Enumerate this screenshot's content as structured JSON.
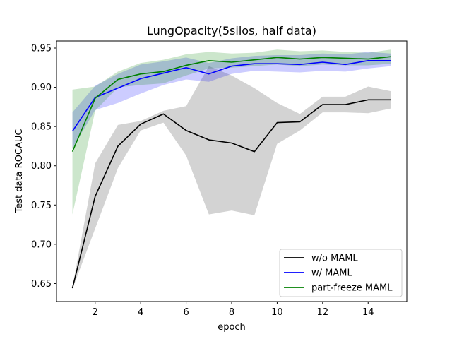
{
  "chart_data": {
    "type": "line",
    "title": "LungOpacity(5silos, half data)",
    "xlabel": "epoch",
    "ylabel": "Test data ROCAUC",
    "xlim": [
      0.3,
      15.7
    ],
    "ylim": [
      0.627,
      0.959
    ],
    "xticks": [
      2,
      4,
      6,
      8,
      10,
      12,
      14
    ],
    "yticks": [
      0.65,
      0.7,
      0.75,
      0.8,
      0.85,
      0.9,
      0.95
    ],
    "ytick_labels": [
      "0.65",
      "0.70",
      "0.75",
      "0.80",
      "0.85",
      "0.90",
      "0.95"
    ],
    "grid": false,
    "legend_position": "lower-right",
    "x": [
      1,
      2,
      3,
      4,
      5,
      6,
      7,
      8,
      9,
      10,
      11,
      12,
      13,
      14,
      15
    ],
    "series": [
      {
        "name": "w/o MAML",
        "color": "#000000",
        "band_color": "#808080",
        "band_opacity": 0.35,
        "values": [
          0.644,
          0.761,
          0.825,
          0.853,
          0.866,
          0.845,
          0.833,
          0.829,
          0.818,
          0.855,
          0.856,
          0.878,
          0.878,
          0.884,
          0.884
        ],
        "lower": [
          0.643,
          0.72,
          0.797,
          0.845,
          0.855,
          0.813,
          0.738,
          0.743,
          0.737,
          0.828,
          0.845,
          0.868,
          0.868,
          0.867,
          0.873
        ],
        "upper": [
          0.645,
          0.803,
          0.852,
          0.857,
          0.87,
          0.876,
          0.927,
          0.915,
          0.899,
          0.88,
          0.866,
          0.888,
          0.888,
          0.901,
          0.895
        ]
      },
      {
        "name": "w/ MAML",
        "color": "#0000ff",
        "band_color": "#0000ff",
        "band_opacity": 0.2,
        "values": [
          0.844,
          0.887,
          0.899,
          0.911,
          0.918,
          0.925,
          0.917,
          0.927,
          0.93,
          0.93,
          0.929,
          0.932,
          0.929,
          0.934,
          0.934
        ],
        "lower": [
          0.822,
          0.871,
          0.88,
          0.892,
          0.903,
          0.91,
          0.907,
          0.917,
          0.921,
          0.92,
          0.919,
          0.921,
          0.92,
          0.924,
          0.927
        ],
        "upper": [
          0.868,
          0.902,
          0.917,
          0.929,
          0.933,
          0.938,
          0.931,
          0.937,
          0.94,
          0.941,
          0.941,
          0.943,
          0.942,
          0.945,
          0.943
        ]
      },
      {
        "name": "part-freeze MAML",
        "color": "#008000",
        "band_color": "#008000",
        "band_opacity": 0.2,
        "values": [
          0.818,
          0.886,
          0.91,
          0.917,
          0.92,
          0.928,
          0.934,
          0.932,
          0.935,
          0.938,
          0.936,
          0.938,
          0.937,
          0.936,
          0.939
        ],
        "lower": [
          0.738,
          0.87,
          0.9,
          0.903,
          0.905,
          0.915,
          0.924,
          0.925,
          0.927,
          0.929,
          0.927,
          0.929,
          0.928,
          0.928,
          0.93
        ],
        "upper": [
          0.897,
          0.901,
          0.92,
          0.931,
          0.935,
          0.942,
          0.945,
          0.943,
          0.944,
          0.948,
          0.946,
          0.947,
          0.945,
          0.944,
          0.948
        ]
      }
    ]
  }
}
